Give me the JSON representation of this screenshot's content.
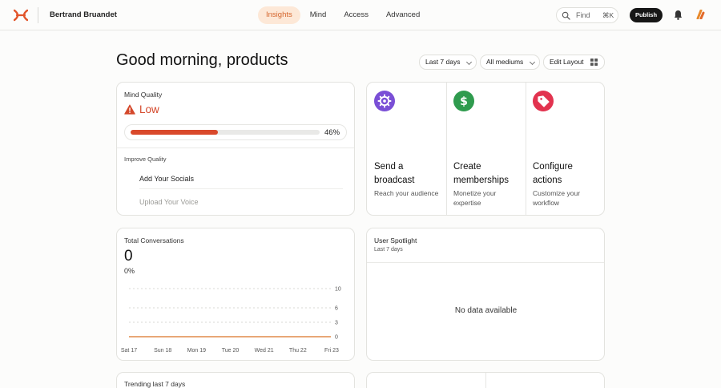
{
  "topbar": {
    "user_name": "Bertrand Bruandet",
    "nav": [
      {
        "label": "Insights",
        "active": true
      },
      {
        "label": "Mind",
        "active": false
      },
      {
        "label": "Access",
        "active": false
      },
      {
        "label": "Advanced",
        "active": false
      }
    ],
    "find_label": "Find",
    "find_shortcut": "⌘K",
    "publish_label": "Publish",
    "accent_color": "#d4642b"
  },
  "header": {
    "greeting": "Good morning, products",
    "range_select": "Last 7 days",
    "medium_select": "All mediums",
    "edit_layout_label": "Edit Layout"
  },
  "mind_quality": {
    "title": "Mind Quality",
    "status": "Low",
    "progress_percent": 46,
    "progress_label": "46%",
    "improve_label": "Improve Quality",
    "tasks": [
      "Add Your Socials",
      "Upload Your Voice"
    ],
    "status_color": "#d4482b"
  },
  "actions": [
    {
      "title": "Send a broadcast",
      "subtitle": "Reach your audience",
      "icon": "settings-icon",
      "color": "#7a4fd6"
    },
    {
      "title": "Create memberships",
      "subtitle": "Monetize your expertise",
      "icon": "dollar-icon",
      "color": "#2f9b4e"
    },
    {
      "title": "Configure actions",
      "subtitle": "Customize your workflow",
      "icon": "tag-icon",
      "color": "#e2334f"
    }
  ],
  "total_conversations": {
    "title": "Total Conversations",
    "value": "0",
    "change": "0%",
    "chart_data": {
      "type": "line",
      "categories": [
        "Sat 17",
        "Sun 18",
        "Mon 19",
        "Tue 20",
        "Wed 21",
        "Thu 22",
        "Fri 23"
      ],
      "series": [
        {
          "values": [
            0,
            0,
            0,
            0,
            0,
            0,
            0
          ],
          "color": "#e08a4a"
        }
      ],
      "y_ticks": [
        "10",
        "6",
        "3",
        "0"
      ],
      "y_tick_values": [
        10,
        6,
        3,
        0
      ],
      "ylim": [
        0,
        10
      ],
      "grid": true
    }
  },
  "user_spotlight": {
    "title": "User Spotlight",
    "subtitle": "Last 7 days",
    "empty_text": "No data available"
  },
  "trending": {
    "title": "Trending last 7 days"
  }
}
